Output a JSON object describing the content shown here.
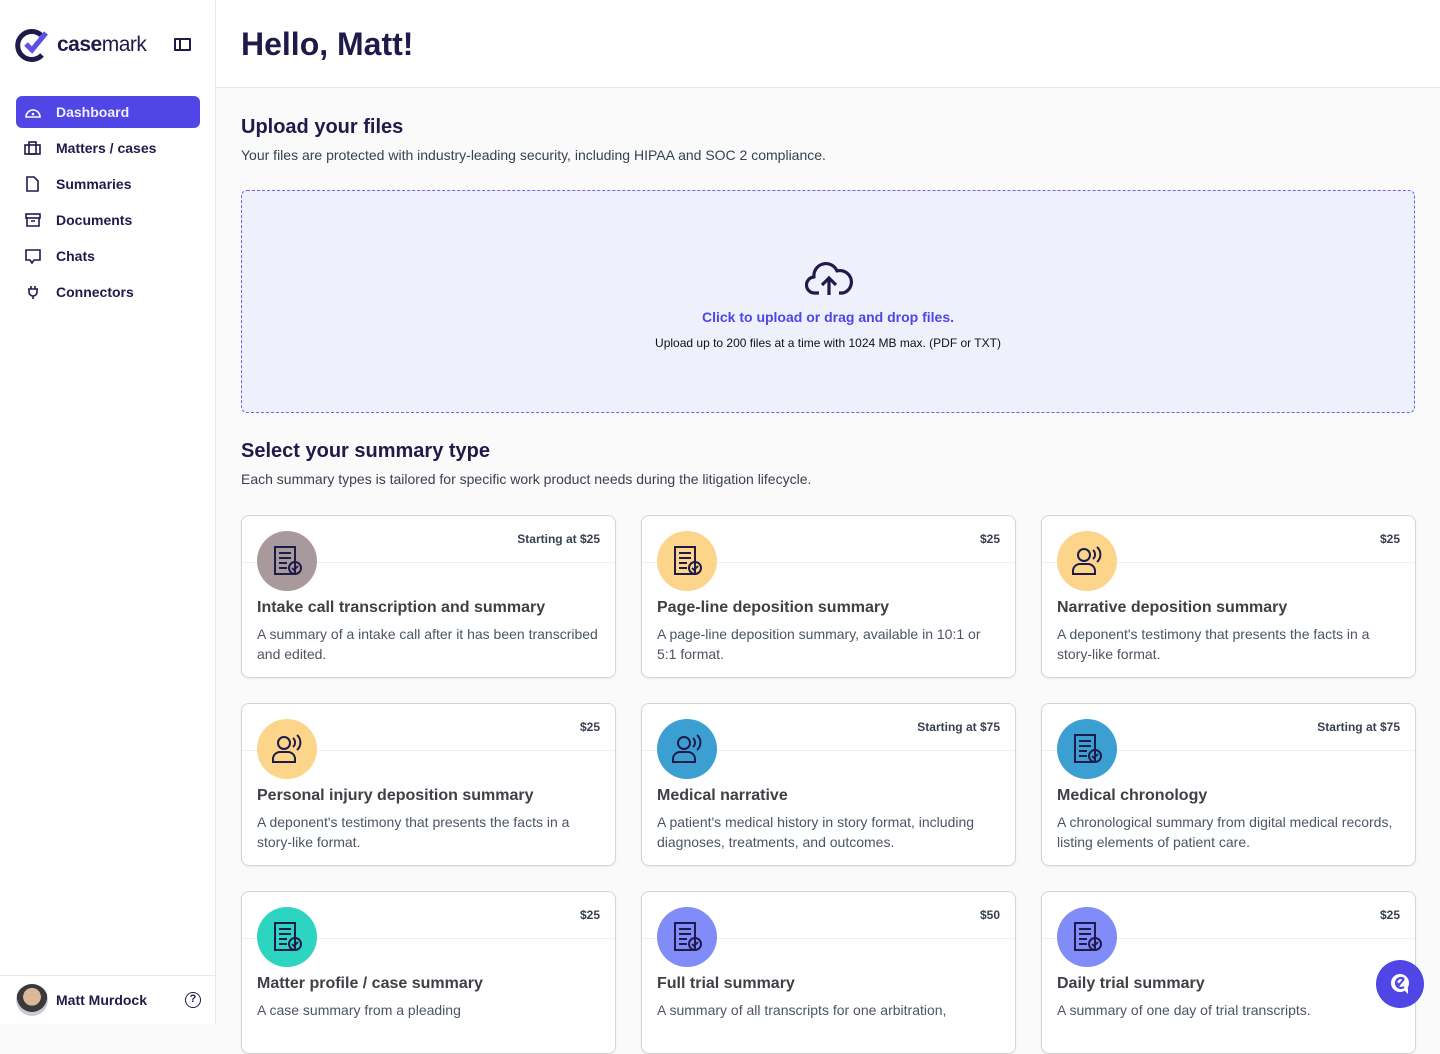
{
  "brand": {
    "name_bold": "case",
    "name_light": "mark"
  },
  "sidebar": {
    "items": [
      {
        "label": "Dashboard",
        "icon": "gauge-icon",
        "active": true
      },
      {
        "label": "Matters / cases",
        "icon": "briefcase-icon"
      },
      {
        "label": "Summaries",
        "icon": "document-icon"
      },
      {
        "label": "Documents",
        "icon": "archive-icon"
      },
      {
        "label": "Chats",
        "icon": "chat-icon"
      },
      {
        "label": "Connectors",
        "icon": "plug-icon"
      }
    ],
    "user": {
      "name": "Matt Murdock"
    }
  },
  "header": {
    "title": "Hello, Matt!"
  },
  "upload": {
    "title": "Upload your files",
    "subtitle": "Your files are protected with industry-leading security, including HIPAA and SOC 2 compliance.",
    "link": "Click to upload or drag and drop files.",
    "note": "Upload up to 200 files at a time with 1024 MB max. (PDF or TXT)"
  },
  "summary": {
    "title": "Select your summary type",
    "subtitle": "Each summary types is tailored for specific work product needs during the litigation lifecycle.",
    "cards": [
      {
        "price": "Starting at $25",
        "title": "Intake call transcription and summary",
        "desc": "A summary of a intake call after it has been transcribed and edited.",
        "color": "#a89a9c",
        "icon": "transcript-audio-icon"
      },
      {
        "price": "$25",
        "title": "Page-line deposition summary",
        "desc": "A page-line deposition summary, available in 10:1 or 5:1 format.",
        "color": "#fcd58a",
        "icon": "document-check-icon"
      },
      {
        "price": "$25",
        "title": "Narrative deposition summary",
        "desc": "A deponent's testimony that presents the facts in a story-like format.",
        "color": "#fcd58a",
        "icon": "person-speaking-icon"
      },
      {
        "price": "$25",
        "title": "Personal injury deposition summary",
        "desc": "A deponent's testimony that presents the facts in a story-like format.",
        "color": "#fcd58a",
        "icon": "injured-person-icon"
      },
      {
        "price": "Starting at $75",
        "title": "Medical narrative",
        "desc": "A patient's medical history in story format, including diagnoses, treatments, and outcomes.",
        "color": "#3b9fd1",
        "icon": "medical-person-icon"
      },
      {
        "price": "Starting at $75",
        "title": "Medical chronology",
        "desc": "A chronological summary from digital medical records, listing elements of patient care.",
        "color": "#3b9fd1",
        "icon": "medical-record-icon"
      },
      {
        "price": "$25",
        "title": "Matter profile / case summary",
        "desc": "A case summary from a pleading",
        "color": "#2dd4bf",
        "icon": "briefcase-check-icon"
      },
      {
        "price": "$50",
        "title": "Full trial summary",
        "desc": "A summary of all transcripts for one arbitration,",
        "color": "#818cf8",
        "icon": "scales-document-icon"
      },
      {
        "price": "$25",
        "title": "Daily trial summary",
        "desc": "A summary of one day of trial transcripts.",
        "color": "#818cf8",
        "icon": "scales-document-icon"
      }
    ]
  },
  "colors": {
    "accent": "#4f46e5",
    "upload_bg": "#eef0fb"
  }
}
